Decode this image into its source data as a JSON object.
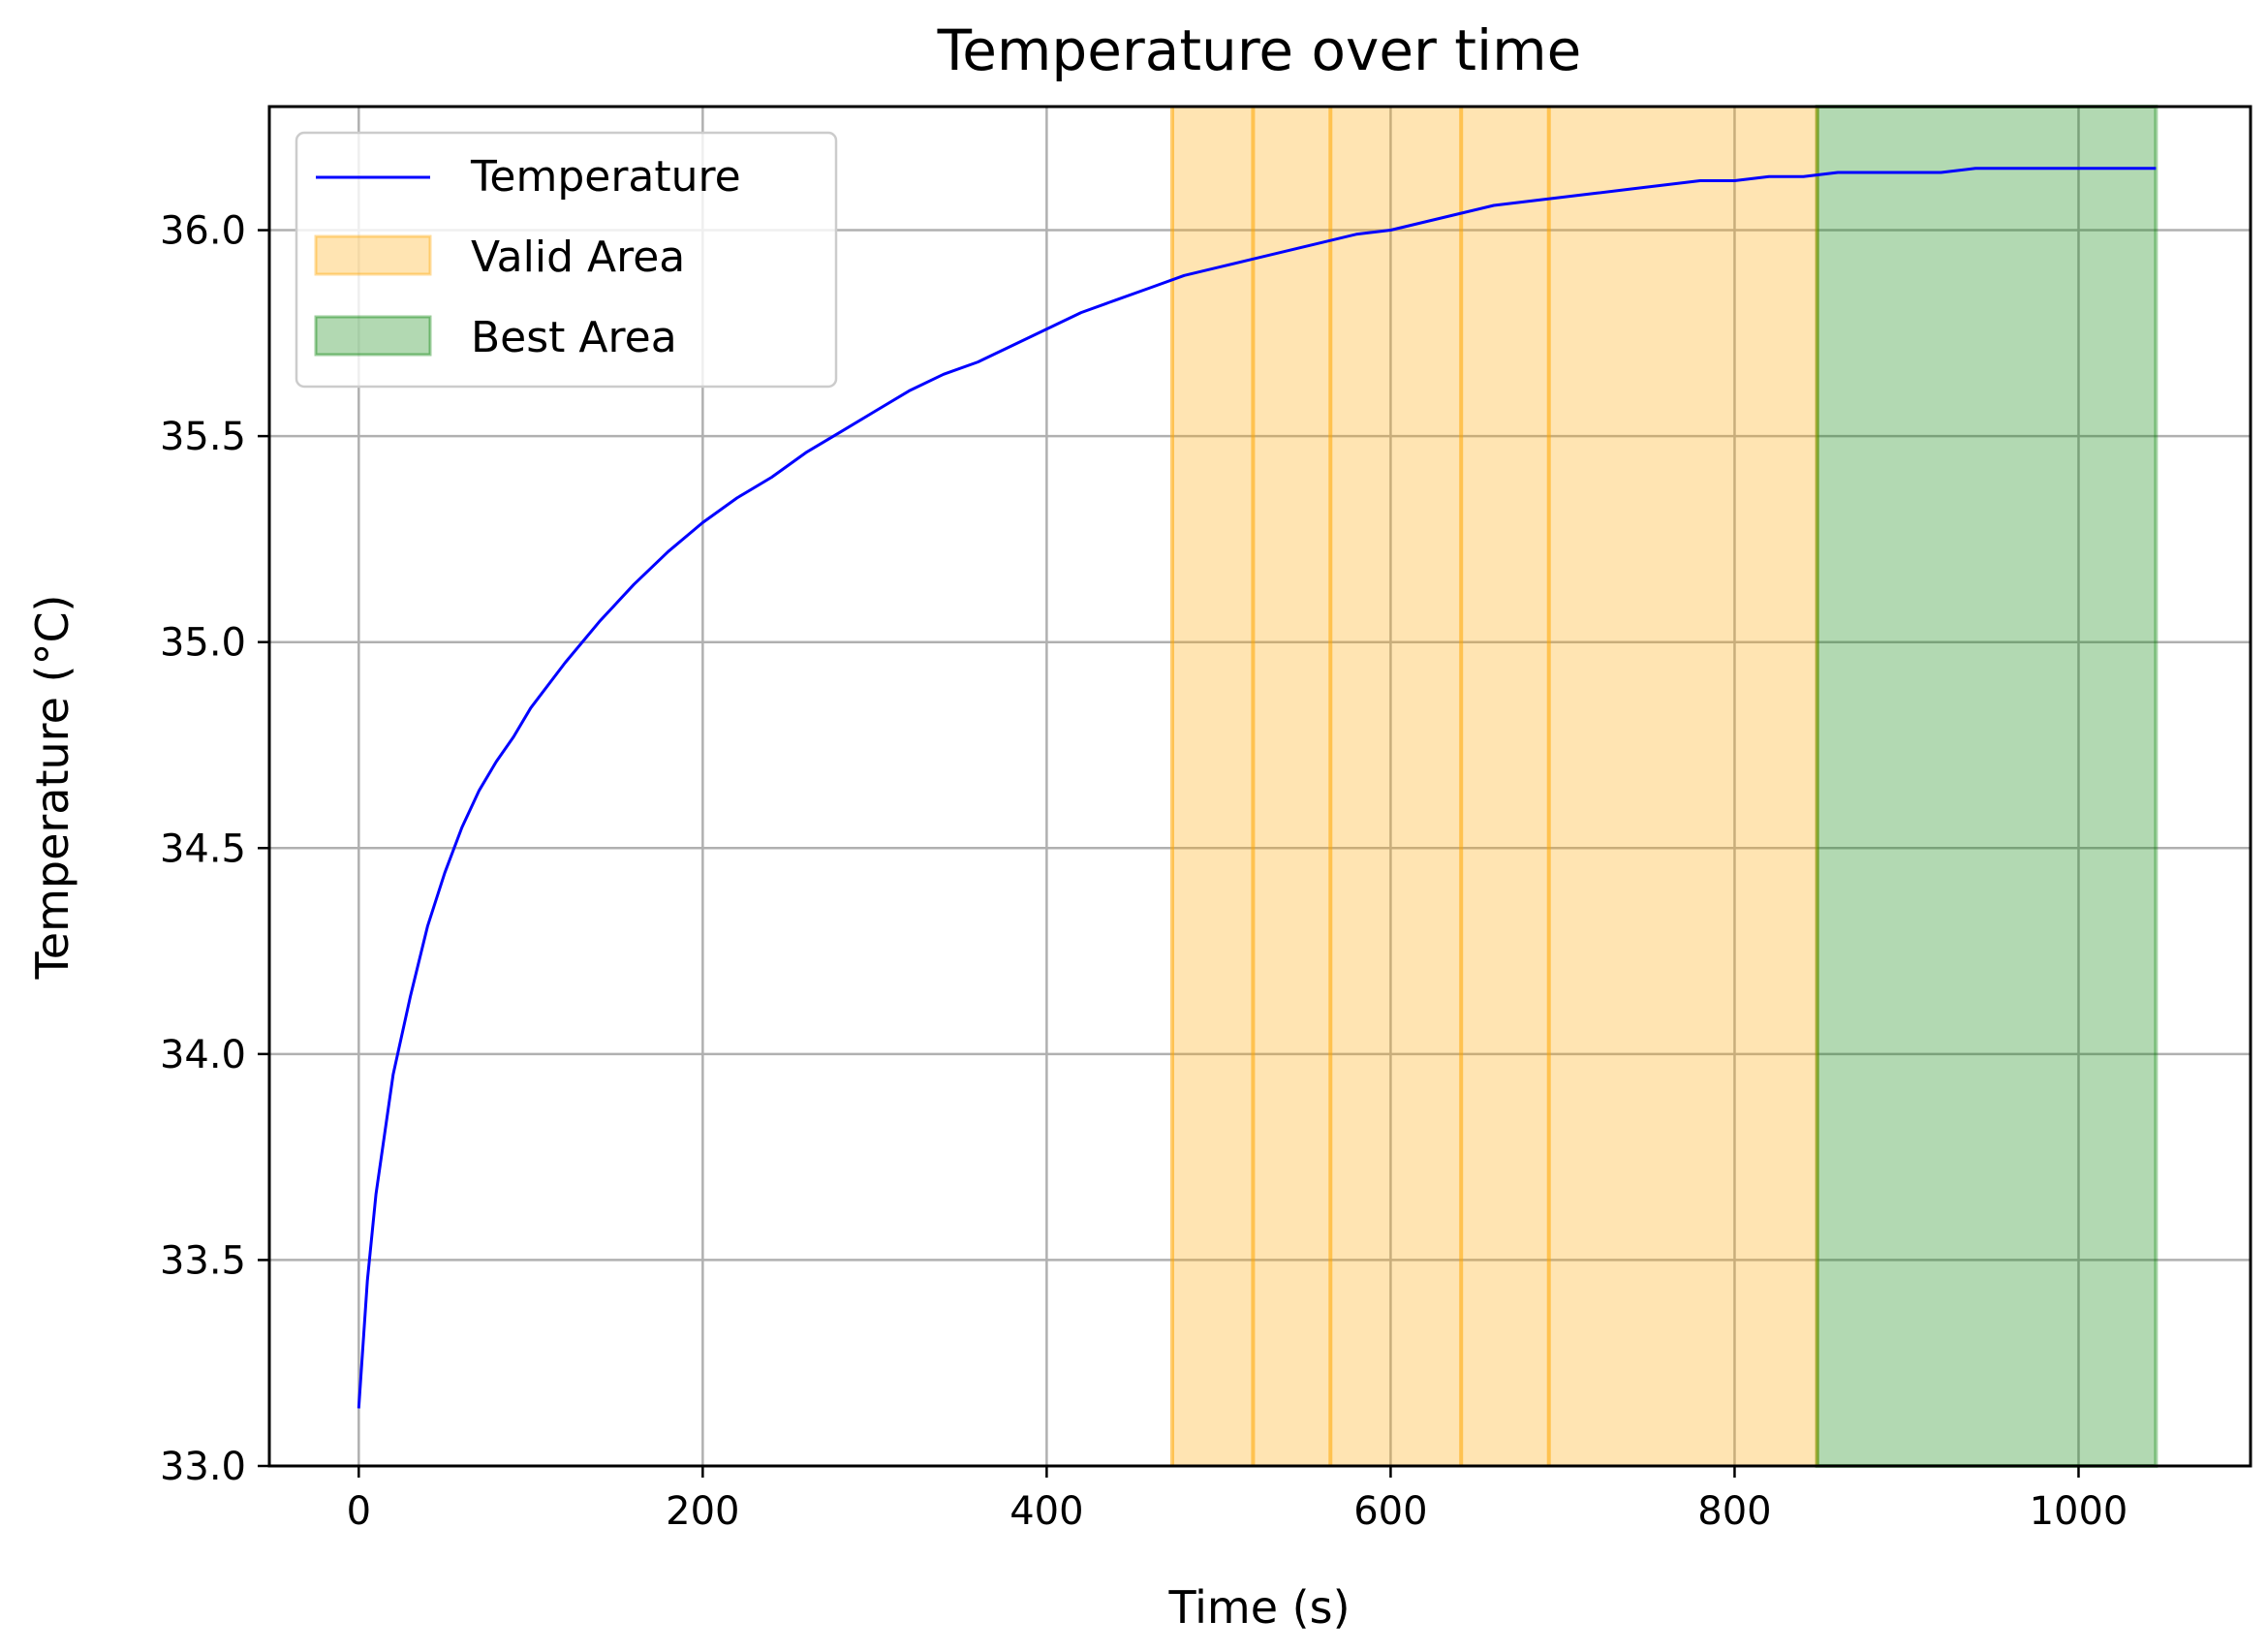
{
  "chart_data": {
    "type": "line",
    "title": "Temperature over time",
    "xlabel": "Time (s)",
    "ylabel": "Temperature (°C)",
    "xlim": [
      -52,
      1100
    ],
    "ylim": [
      33.0,
      36.3
    ],
    "grid": true,
    "legend_position": "top-left",
    "x_ticks": [
      0,
      200,
      400,
      600,
      800,
      1000
    ],
    "x_tick_labels": [
      "0",
      "200",
      "400",
      "600",
      "800",
      "1000"
    ],
    "y_ticks": [
      33.0,
      33.5,
      34.0,
      34.5,
      35.0,
      35.5,
      36.0
    ],
    "y_tick_labels": [
      "33.0",
      "33.5",
      "34.0",
      "34.5",
      "35.0",
      "35.5",
      "36.0"
    ],
    "series": [
      {
        "name": "Temperature",
        "color": "#0000ff",
        "x": [
          0,
          5,
          10,
          20,
          30,
          40,
          50,
          60,
          70,
          80,
          90,
          100,
          120,
          140,
          160,
          180,
          200,
          220,
          240,
          260,
          280,
          300,
          320,
          340,
          360,
          380,
          400,
          420,
          440,
          460,
          480,
          500,
          520,
          540,
          560,
          580,
          600,
          620,
          640,
          660,
          680,
          700,
          720,
          740,
          760,
          780,
          800,
          820,
          840,
          860,
          880,
          900,
          920,
          940,
          960,
          980,
          1000,
          1020,
          1045
        ],
        "y": [
          33.14,
          33.45,
          33.66,
          33.95,
          34.14,
          34.31,
          34.44,
          34.55,
          34.64,
          34.71,
          34.77,
          34.84,
          34.95,
          35.05,
          35.14,
          35.22,
          35.29,
          35.35,
          35.4,
          35.46,
          35.51,
          35.56,
          35.61,
          35.65,
          35.68,
          35.72,
          35.76,
          35.8,
          35.83,
          35.86,
          35.89,
          35.91,
          35.93,
          35.95,
          35.97,
          35.99,
          36.0,
          36.02,
          36.04,
          36.06,
          36.07,
          36.08,
          36.09,
          36.1,
          36.11,
          36.12,
          36.12,
          36.13,
          36.13,
          36.14,
          36.14,
          36.14,
          36.14,
          36.15,
          36.15,
          36.15,
          36.15,
          36.15,
          36.15
        ]
      }
    ],
    "valid_area": {
      "name": "Valid Area",
      "color": "#ffa500",
      "range": [
        473,
        848
      ],
      "boundaries": [
        473,
        520,
        565,
        641,
        692,
        848
      ]
    },
    "best_area": {
      "name": "Best Area",
      "color": "#008000",
      "range": [
        848,
        1045
      ]
    }
  }
}
